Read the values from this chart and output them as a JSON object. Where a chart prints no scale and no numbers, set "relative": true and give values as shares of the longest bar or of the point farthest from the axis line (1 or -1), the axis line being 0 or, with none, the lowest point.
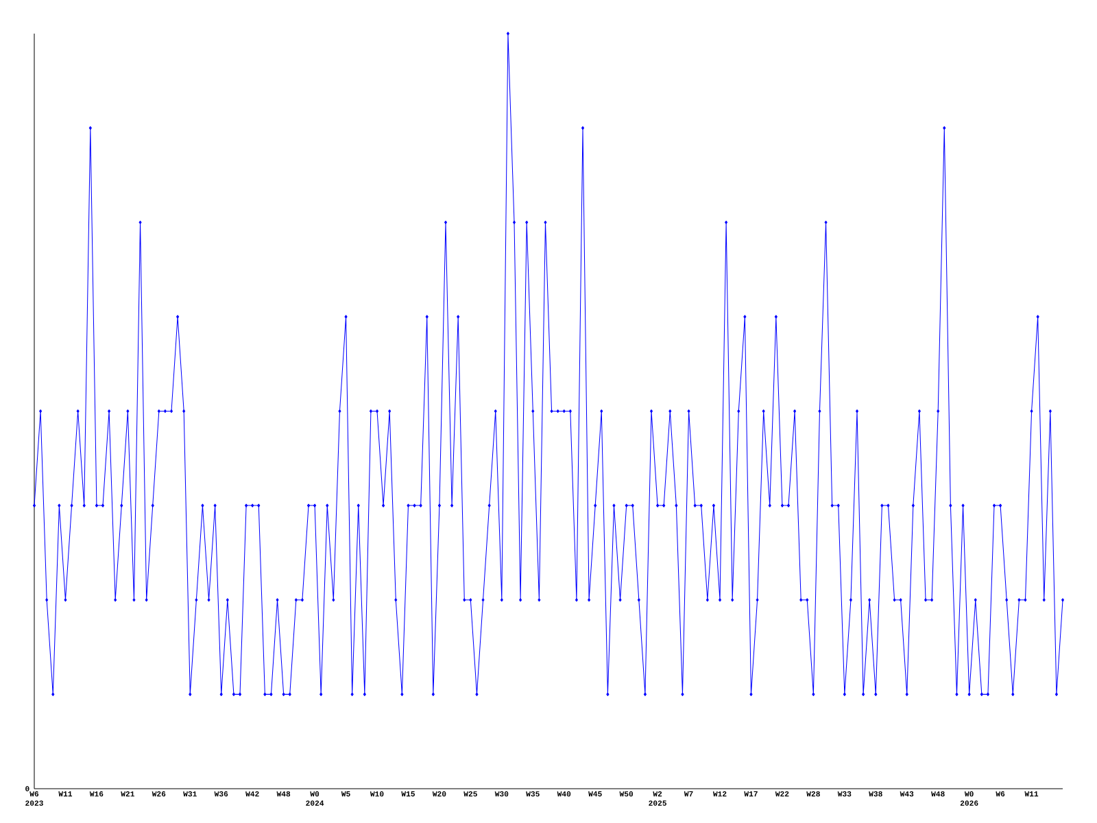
{
  "chart_data": {
    "type": "line",
    "relative": true,
    "categories": [
      "W6 2023",
      null,
      null,
      null,
      null,
      "W11",
      null,
      null,
      null,
      null,
      "W16",
      null,
      null,
      null,
      null,
      "W21",
      null,
      null,
      null,
      null,
      "W26",
      null,
      null,
      null,
      null,
      "W31",
      null,
      null,
      null,
      null,
      "W36",
      null,
      null,
      null,
      null,
      "W42",
      null,
      null,
      null,
      null,
      "W48",
      null,
      null,
      null,
      null,
      "W0 2024",
      null,
      null,
      null,
      null,
      "W5",
      null,
      null,
      null,
      null,
      "W10",
      null,
      null,
      null,
      null,
      "W15",
      null,
      null,
      null,
      null,
      "W20",
      null,
      null,
      null,
      null,
      "W25",
      null,
      null,
      null,
      null,
      "W30",
      null,
      null,
      null,
      null,
      "W35",
      null,
      null,
      null,
      null,
      "W40",
      null,
      null,
      null,
      null,
      "W45",
      null,
      null,
      null,
      null,
      "W50",
      null,
      null,
      null,
      null,
      "W2 2025",
      null,
      null,
      null,
      null,
      "W7",
      null,
      null,
      null,
      null,
      "W12",
      null,
      null,
      null,
      null,
      "W17",
      null,
      null,
      null,
      null,
      "W22",
      null,
      null,
      null,
      null,
      "W28",
      null,
      null,
      null,
      null,
      "W33",
      null,
      null,
      null,
      null,
      "W38",
      null,
      null,
      null,
      null,
      "W43",
      null,
      null,
      null,
      null,
      "W48",
      null,
      null,
      null,
      null,
      "W0 2026",
      null,
      null,
      null,
      null,
      "W6",
      null,
      null,
      null,
      null,
      "W11",
      null,
      null,
      null,
      null,
      null
    ],
    "values": [
      0.375,
      0.5,
      0.25,
      0.125,
      0.375,
      0.25,
      0.375,
      0.5,
      0.375,
      0.875,
      0.375,
      0.375,
      0.5,
      0.25,
      0.375,
      0.5,
      0.25,
      0.75,
      0.25,
      0.375,
      0.5,
      0.5,
      0.5,
      0.625,
      0.5,
      0.125,
      0.25,
      0.375,
      0.25,
      0.375,
      0.125,
      0.25,
      0.125,
      0.125,
      0.375,
      0.375,
      0.375,
      0.125,
      0.125,
      0.25,
      0.125,
      0.125,
      0.25,
      0.25,
      0.375,
      0.375,
      0.125,
      0.375,
      0.25,
      0.5,
      0.625,
      0.125,
      0.375,
      0.125,
      0.5,
      0.5,
      0.375,
      0.5,
      0.25,
      0.125,
      0.375,
      0.375,
      0.375,
      0.625,
      0.125,
      0.375,
      0.75,
      0.375,
      0.625,
      0.25,
      0.25,
      0.125,
      0.25,
      0.375,
      0.5,
      0.25,
      1,
      0.75,
      0.25,
      0.75,
      0.5,
      0.25,
      0.75,
      0.5,
      0.5,
      0.5,
      0.5,
      0.25,
      0.875,
      0.25,
      0.375,
      0.5,
      0.125,
      0.375,
      0.25,
      0.375,
      0.375,
      0.25,
      0.125,
      0.5,
      0.375,
      0.375,
      0.5,
      0.375,
      0.125,
      0.5,
      0.375,
      0.375,
      0.25,
      0.375,
      0.25,
      0.75,
      0.25,
      0.5,
      0.625,
      0.125,
      0.25,
      0.5,
      0.375,
      0.625,
      0.375,
      0.375,
      0.5,
      0.25,
      0.25,
      0.125,
      0.5,
      0.75,
      0.375,
      0.375,
      0.125,
      0.25,
      0.5,
      0.125,
      0.25,
      0.125,
      0.375,
      0.375,
      0.25,
      0.25,
      0.125,
      0.375,
      0.5,
      0.25,
      0.25,
      0.5,
      0.875,
      0.375,
      0.125,
      0.375,
      0.125,
      0.25,
      0.125,
      0.125,
      0.375,
      0.375,
      0.25,
      0.125,
      0.25,
      0.25,
      0.5,
      0.625,
      0.25,
      0.5,
      0.125,
      0.25
    ],
    "color": "#0000ff",
    "marker": "diamond",
    "line_style": "solid",
    "annotations": [
      "0"
    ]
  }
}
